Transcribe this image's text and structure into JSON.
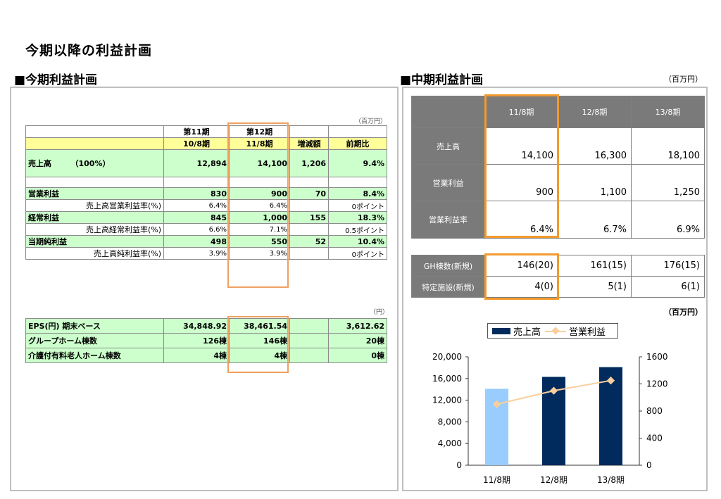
{
  "page": {
    "title": "今期以降の利益計画"
  },
  "left": {
    "section_title": "■今期利益計画",
    "unit_top": "（百万円）",
    "unit_bottom": "（円）",
    "header_row1": {
      "c1": "",
      "c2": "第11期",
      "c3": "第12期",
      "c4": "",
      "c5": ""
    },
    "header_row2": {
      "c1": "",
      "c2": "10/8期",
      "c3": "11/8期",
      "c4": "増減額",
      "c5": "前期比"
    },
    "rows": [
      {
        "label": "売上高　　　（100%）",
        "v1": "12,894",
        "v2": "14,100",
        "diff": "1,206",
        "ratio": "9.4%"
      },
      {
        "label": "",
        "v1": "",
        "v2": "",
        "diff": "",
        "ratio": ""
      },
      {
        "label": "営業利益",
        "v1": "830",
        "v2": "900",
        "diff": "70",
        "ratio": "8.4%"
      },
      {
        "label": "売上高営業利益率(%)",
        "v1": "6.4%",
        "v2": "6.4%",
        "diff": "",
        "ratio": "0ポイント"
      },
      {
        "label": "経常利益",
        "v1": "845",
        "v2": "1,000",
        "diff": "155",
        "ratio": "18.3%"
      },
      {
        "label": "売上高経常利益率(%)",
        "v1": "6.6%",
        "v2": "7.1%",
        "diff": "",
        "ratio": "0.5ポイント"
      },
      {
        "label": "当期純利益",
        "v1": "498",
        "v2": "550",
        "diff": "52",
        "ratio": "10.4%"
      },
      {
        "label": "売上高純利益率(%)",
        "v1": "3.9%",
        "v2": "3.9%",
        "diff": "",
        "ratio": "0ポイント"
      }
    ],
    "rows2": [
      {
        "label": "EPS(円) 期末ベース",
        "v1": "34,848.92",
        "v2": "38,461.54",
        "diff": "",
        "ratio": "3,612.62"
      },
      {
        "label": "グループホーム棟数",
        "v1": "126棟",
        "v2": "146棟",
        "diff": "",
        "ratio": "20棟"
      },
      {
        "label": "介護付有料老人ホーム棟数",
        "v1": "4棟",
        "v2": "4棟",
        "diff": "",
        "ratio": "0棟"
      }
    ]
  },
  "right": {
    "section_title": "■中期利益計画",
    "unit_top": "（百万円）",
    "unit_mid": "（百万円）",
    "periods": [
      "11/8期",
      "12/8期",
      "13/8期"
    ],
    "rows": [
      {
        "label": "売上高",
        "values": [
          "14,100",
          "16,300",
          "18,100"
        ]
      },
      {
        "label": "営業利益",
        "values": [
          "900",
          "1,100",
          "1,250"
        ]
      },
      {
        "label": "営業利益率",
        "values": [
          "6.4%",
          "6.7%",
          "6.9%"
        ]
      }
    ],
    "rows2": [
      {
        "label": "GH棟数(新規)",
        "values": [
          "146(20)",
          "161(15)",
          "176(15)"
        ]
      },
      {
        "label": "特定施設(新規)",
        "values": [
          "4(0)",
          "5(1)",
          "6(1)"
        ]
      }
    ]
  },
  "legend": {
    "sales": "売上高",
    "op": "営業利益"
  },
  "chart_data": {
    "type": "bar",
    "categories": [
      "11/8期",
      "12/8期",
      "13/8期"
    ],
    "series": [
      {
        "name": "売上高",
        "type": "bar",
        "axis": "left",
        "values": [
          14100,
          16300,
          18100
        ],
        "colors": [
          "#99ccff",
          "#002b5c",
          "#002b5c"
        ]
      },
      {
        "name": "営業利益",
        "type": "line",
        "axis": "right",
        "values": [
          900,
          1100,
          1250
        ],
        "color": "#f9cf9d"
      }
    ],
    "ylim": [
      0,
      20000
    ],
    "y_ticks": [
      "20,000",
      "16,000",
      "12,000",
      "8,000",
      "4,000",
      "0"
    ],
    "y2lim": [
      0,
      1600
    ],
    "y2_ticks": [
      "1600",
      "1200",
      "800",
      "400",
      "0"
    ],
    "grid": false,
    "legend_position": "top"
  }
}
